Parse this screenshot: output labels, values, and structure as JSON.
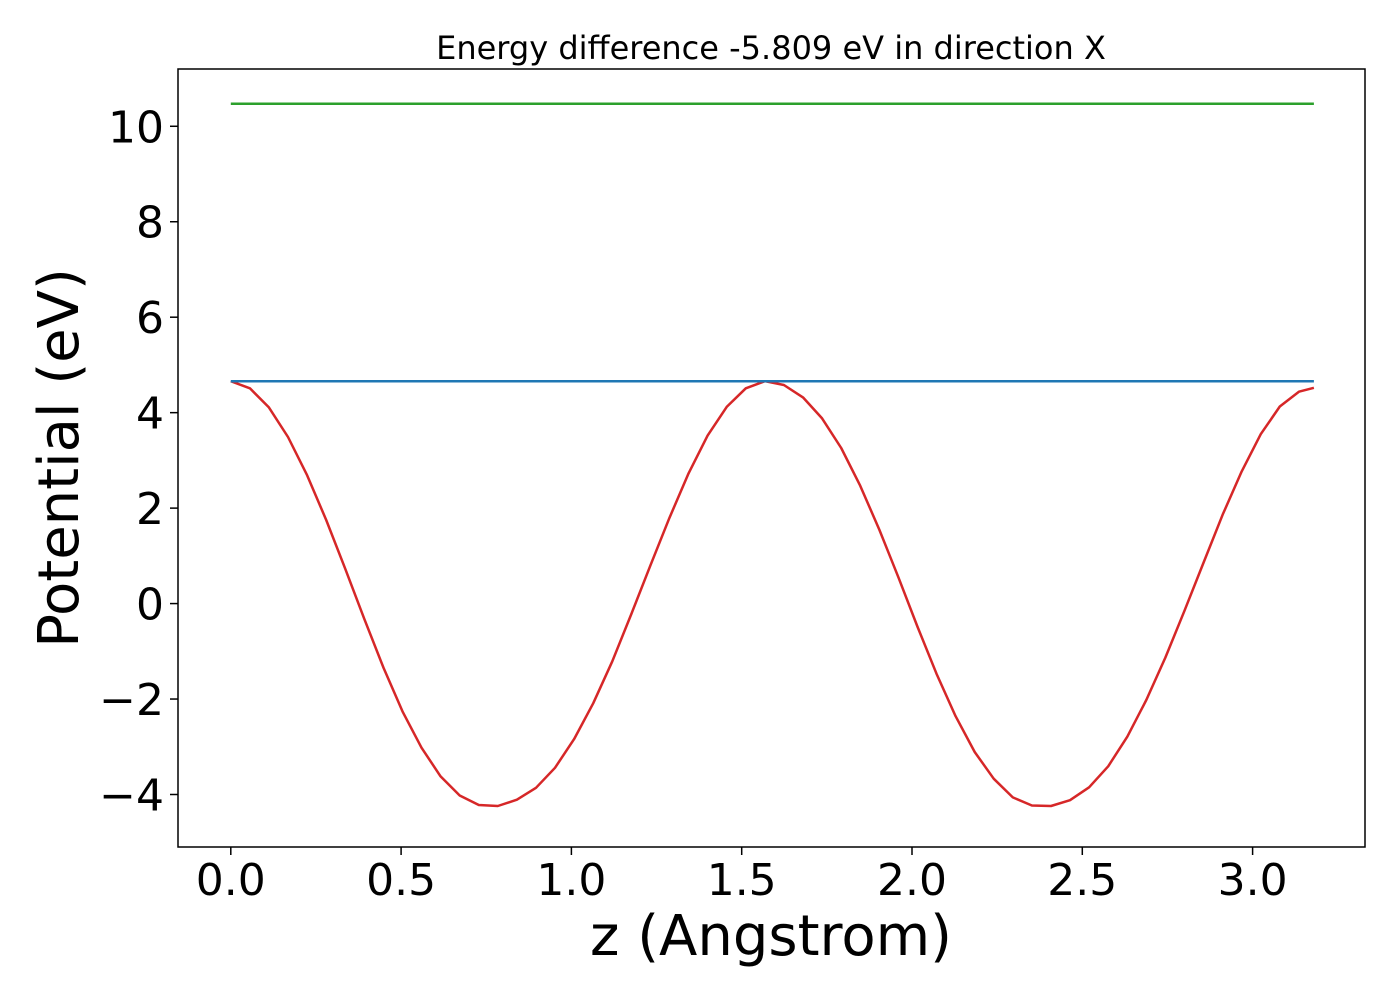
{
  "chart_data": {
    "type": "line",
    "title": "Energy difference -5.809 eV in direction X",
    "xlabel": "z (Angstrom)",
    "ylabel": "Potential (eV)",
    "xlim": [
      -0.155,
      3.33
    ],
    "ylim": [
      -5.1,
      11.2
    ],
    "xticks": [
      0.0,
      0.5,
      1.0,
      1.5,
      2.0,
      2.5,
      3.0
    ],
    "xtick_labels": [
      "0.0",
      "0.5",
      "1.0",
      "1.5",
      "2.0",
      "2.5",
      "3.0"
    ],
    "yticks": [
      -4,
      -2,
      0,
      2,
      4,
      6,
      8,
      10
    ],
    "ytick_labels": [
      "−4",
      "−2",
      "0",
      "2",
      "4",
      "6",
      "8",
      "10"
    ],
    "grid": false,
    "series": [
      {
        "color": "#d62728",
        "x": [
          0.0,
          0.056,
          0.112,
          0.168,
          0.224,
          0.28,
          0.336,
          0.392,
          0.448,
          0.504,
          0.56,
          0.616,
          0.672,
          0.728,
          0.784,
          0.84,
          0.896,
          0.952,
          1.008,
          1.064,
          1.12,
          1.176,
          1.232,
          1.288,
          1.344,
          1.4,
          1.456,
          1.512,
          1.568,
          1.624,
          1.68,
          1.736,
          1.792,
          1.848,
          1.904,
          1.96,
          2.016,
          2.072,
          2.128,
          2.184,
          2.24,
          2.296,
          2.352,
          2.408,
          2.464,
          2.52,
          2.576,
          2.632,
          2.688,
          2.744,
          2.8,
          2.856,
          2.912,
          2.968,
          3.024,
          3.08,
          3.136,
          3.18
        ],
        "y": [
          4.66,
          4.51,
          4.11,
          3.49,
          2.69,
          1.75,
          0.73,
          -0.32,
          -1.34,
          -2.26,
          -3.02,
          -3.62,
          -4.02,
          -4.22,
          -4.24,
          -4.11,
          -3.86,
          -3.44,
          -2.84,
          -2.09,
          -1.21,
          -0.22,
          0.8,
          1.8,
          2.73,
          3.52,
          4.12,
          4.51,
          4.66,
          4.58,
          4.32,
          3.88,
          3.26,
          2.47,
          1.55,
          0.55,
          -0.48,
          -1.47,
          -2.36,
          -3.11,
          -3.67,
          -4.06,
          -4.23,
          -4.24,
          -4.12,
          -3.85,
          -3.41,
          -2.79,
          -2.02,
          -1.13,
          -0.15,
          0.86,
          1.86,
          2.77,
          3.55,
          4.13,
          4.44,
          4.52
        ]
      },
      {
        "color": "#1f77b4",
        "x": [
          0.0,
          3.18
        ],
        "y": [
          4.66,
          4.66
        ]
      },
      {
        "color": "#2ca02c",
        "x": [
          0.0,
          3.18
        ],
        "y": [
          10.47,
          10.47
        ]
      }
    ]
  }
}
